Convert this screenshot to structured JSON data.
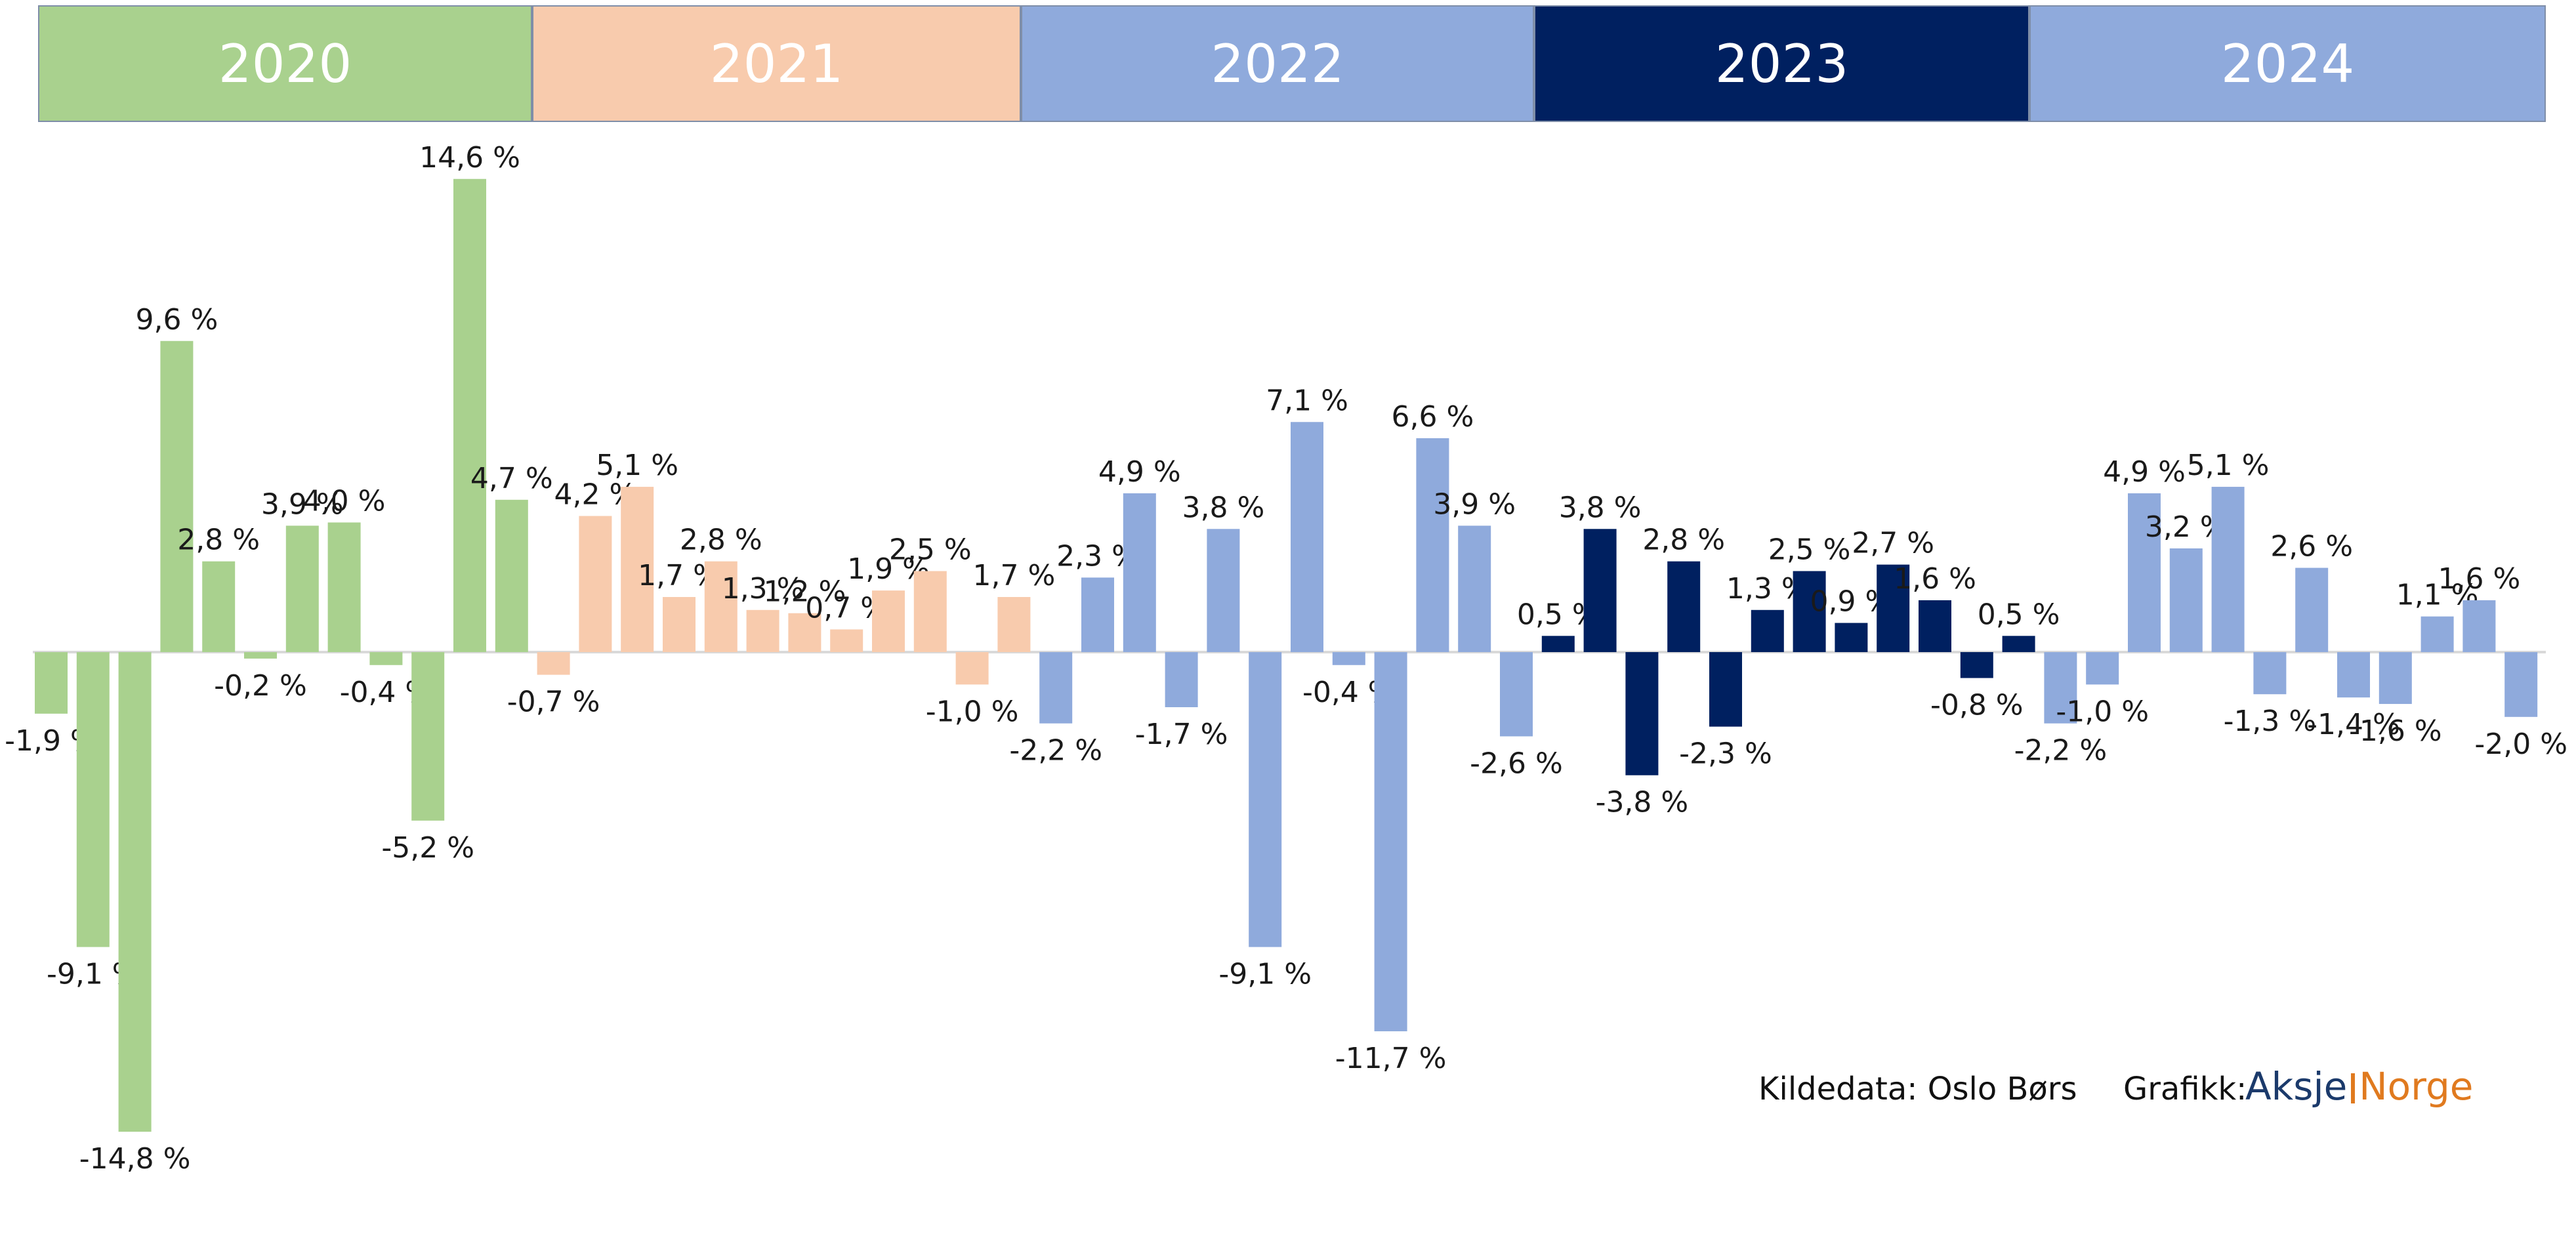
{
  "header": {
    "years": [
      {
        "label": "2020",
        "color": "#a9d18e"
      },
      {
        "label": "2021",
        "color": "#f8cbad"
      },
      {
        "label": "2022",
        "color": "#8faadc"
      },
      {
        "label": "2023",
        "color": "#002060"
      },
      {
        "label": "2024",
        "color": "#8faadc"
      }
    ]
  },
  "chart_data": {
    "type": "bar",
    "ylim": [
      -15,
      15
    ],
    "grid": false,
    "series": [
      {
        "values": [
          -1.9,
          -9.1,
          -14.8,
          9.6,
          2.8,
          -0.2,
          3.9,
          4.0,
          -0.4,
          -5.2,
          14.6,
          4.7,
          -0.7,
          4.2,
          5.1,
          1.7,
          2.8,
          1.3,
          1.2,
          0.7,
          1.9,
          2.5,
          -1.0,
          1.7,
          -2.2,
          2.3,
          4.9,
          -1.7,
          3.8,
          -9.1,
          7.1,
          -0.4,
          -11.7,
          6.6,
          3.9,
          -2.6,
          0.5,
          3.8,
          -3.8,
          2.8,
          -2.3,
          1.3,
          2.5,
          0.9,
          2.7,
          1.6,
          -0.8,
          0.5,
          -2.2,
          -1.0,
          4.9,
          3.2,
          5.1,
          -1.3,
          2.6,
          -1.4,
          -1.6,
          1.1,
          1.6,
          -2.0
        ],
        "labels": [
          "-1,9 %",
          "-9,1 %",
          "-14,8 %",
          "9,6 %",
          "2,8 %",
          "-0,2 %",
          "3,9 %",
          "4,0 %",
          "-0,4 %",
          "-5,2 %",
          "14,6 %",
          "4,7 %",
          "-0,7 %",
          "4,2 %",
          "5,1 %",
          "1,7 %",
          "2,8 %",
          "1,3 %",
          "1,2 %",
          "0,7 %",
          "1,9 %",
          "2,5 %",
          "-1,0 %",
          "1,7 %",
          "-2,2 %",
          "2,3 %",
          "4,9 %",
          "-1,7 %",
          "3,8 %",
          "-9,1 %",
          "7,1 %",
          "-0,4 %",
          "-11,7 %",
          "6,6 %",
          "3,9 %",
          "-2,6 %",
          "0,5 %",
          "3,8 %",
          "-3,8 %",
          "2,8 %",
          "-2,3 %",
          "1,3 %",
          "2,5 %",
          "0,9 %",
          "2,7 %",
          "1,6 %",
          "-0,8 %",
          "0,5 %",
          "-2,2 %",
          "-1,0 %",
          "4,9 %",
          "3,2 %",
          "5,1 %",
          "-1,3 %",
          "2,6 %",
          "-1,4 %",
          "-1,6 %",
          "1,1 %",
          "1,6 %",
          "-2,0 %"
        ],
        "years": [
          "2020",
          "2020",
          "2020",
          "2020",
          "2020",
          "2020",
          "2020",
          "2020",
          "2020",
          "2020",
          "2020",
          "2020",
          "2021",
          "2021",
          "2021",
          "2021",
          "2021",
          "2021",
          "2021",
          "2021",
          "2021",
          "2021",
          "2021",
          "2021",
          "2022",
          "2022",
          "2022",
          "2022",
          "2022",
          "2022",
          "2022",
          "2022",
          "2022",
          "2022",
          "2022",
          "2022",
          "2023",
          "2023",
          "2023",
          "2023",
          "2023",
          "2023",
          "2023",
          "2023",
          "2023",
          "2023",
          "2023",
          "2023",
          "2024",
          "2024",
          "2024",
          "2024",
          "2024",
          "2024",
          "2024",
          "2024",
          "2024",
          "2024",
          "2024",
          "2024"
        ]
      }
    ]
  },
  "footer": {
    "source": "Kildedata: Oslo Børs",
    "graphic": "Grafikk:",
    "logo_part1": "Aksje",
    "logo_part2": "Norge"
  }
}
